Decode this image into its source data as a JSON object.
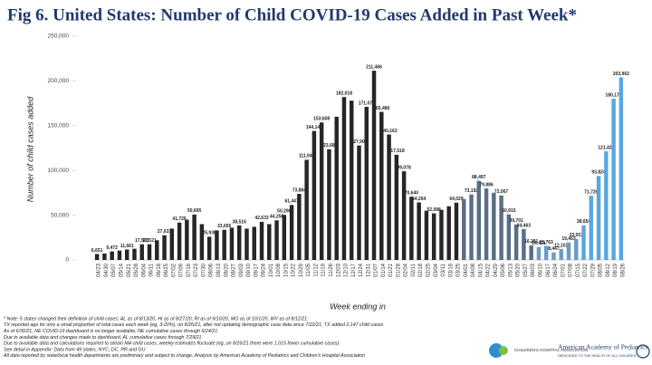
{
  "chart_data": {
    "type": "bar",
    "title": "Fig 6. United States: Number of Child COVID-19 Cases Added in Past Week*",
    "y_label": "Number of child cases added",
    "x_label": "Week ending in",
    "categories": [
      "04/23",
      "04/30",
      "05/07",
      "05/14",
      "05/21",
      "05/28",
      "06/04",
      "06/11",
      "06/18",
      "06/25",
      "07/02",
      "07/09",
      "07/16",
      "07/23",
      "07/30",
      "08/06",
      "08/13",
      "08/20",
      "08/27",
      "09/03",
      "09/10",
      "09/17",
      "09/24",
      "10/01",
      "10/08",
      "10/15",
      "10/22",
      "10/29",
      "11/05",
      "11/12",
      "11/19",
      "11/26",
      "12/03",
      "12/10",
      "12/17",
      "12/24",
      "12/31",
      "01/07",
      "01/14",
      "01/21",
      "01/28",
      "02/04",
      "02/11",
      "02/18",
      "02/25",
      "03/04",
      "03/11",
      "03/18",
      "03/25",
      "04/01",
      "04/08",
      "04/15",
      "04/22",
      "04/29",
      "05/06",
      "05/13",
      "05/20",
      "05/27",
      "06/03",
      "06/10",
      "06/17",
      "06/24",
      "07/01",
      "07/08",
      "07/15",
      "07/22",
      "07/29",
      "08/05",
      "08/12",
      "08/19",
      "08/26"
    ],
    "values": [
      6651,
      7200,
      9472,
      10500,
      11661,
      12500,
      17503,
      17521,
      22000,
      27631,
      35000,
      41726,
      45000,
      50695,
      40000,
      25938,
      33000,
      33655,
      36000,
      38516,
      35000,
      37000,
      42633,
      40000,
      44258,
      50296,
      61447,
      73884,
      111946,
      144145,
      153608,
      123688,
      160000,
      182018,
      178000,
      127906,
      171079,
      211466,
      165480,
      140162,
      117518,
      99078,
      70640,
      64264,
      55000,
      52088,
      56000,
      60000,
      64029,
      68000,
      73192,
      88497,
      79886,
      75000,
      72067,
      50915,
      39701,
      34463,
      16281,
      14421,
      15763,
      8447,
      12102,
      19463,
      23551,
      38654,
      71726,
      93824,
      121427,
      180175,
      203962
    ],
    "value_labels": [
      "6,651",
      null,
      "9,472",
      null,
      "11,661",
      null,
      "17,503",
      "17,521",
      null,
      "27,631",
      null,
      "41,726",
      null,
      "50,695",
      null,
      "25,938",
      null,
      "33,655",
      null,
      "38,516",
      null,
      null,
      "42,633",
      null,
      "44,258",
      "50,296",
      "61,447",
      "73,884",
      "111,946",
      "144,145",
      "153,608",
      "123,688",
      null,
      "182,018",
      null,
      "127,906",
      "171,079",
      "211,466",
      "165,480",
      "140,162",
      "117,518",
      "99,078",
      "70,640",
      "64,264",
      null,
      "52,088",
      null,
      null,
      "64,029",
      null,
      "73,192",
      "88,497",
      "79,886",
      null,
      "72,067",
      "50,915",
      "39,701",
      "34,463",
      "16,281",
      "14,421",
      "15,763",
      "8,447",
      "12,102",
      "19,463",
      "23,551",
      "38,654",
      "71,726",
      "93,824",
      "121,427",
      "180,175",
      "203,962"
    ],
    "colors": [
      "#262626",
      "#262626",
      "#262626",
      "#262626",
      "#262626",
      "#262626",
      "#262626",
      "#262626",
      "#262626",
      "#262626",
      "#262626",
      "#262626",
      "#262626",
      "#262626",
      "#262626",
      "#262626",
      "#262626",
      "#262626",
      "#262626",
      "#262626",
      "#262626",
      "#262626",
      "#262626",
      "#262626",
      "#262626",
      "#262626",
      "#262626",
      "#262626",
      "#262626",
      "#262626",
      "#262626",
      "#262626",
      "#262626",
      "#262626",
      "#262626",
      "#262626",
      "#262626",
      "#262626",
      "#262626",
      "#262626",
      "#262626",
      "#262626",
      "#262626",
      "#262626",
      "#262626",
      "#262626",
      "#262626",
      "#262626",
      "#262626",
      "#5a6f86",
      "#5a6f86",
      "#5a6f86",
      "#5a6f86",
      "#5a6f86",
      "#5a6f86",
      "#5a6f86",
      "#5a6f86",
      "#5a6f86",
      "#5a6f86",
      "#6b9bc9",
      "#6b9bc9",
      "#6b9bc9",
      "#6b9bc9",
      "#6b9bc9",
      "#6b9bc9",
      "#5aa7e0",
      "#5aa7e0",
      "#5aa7e0",
      "#5aa7e0",
      "#5aa7e0",
      "#5aa7e0"
    ],
    "ylim": [
      0,
      250000
    ],
    "yticks": [
      0,
      {
        "value": 50000,
        "label": "50,000"
      },
      {
        "value": 100000,
        "label": "100,000"
      },
      {
        "value": 150000,
        "label": "150,000"
      },
      {
        "value": 200000,
        "label": "200,000"
      },
      {
        "value": 250000,
        "label": "250,000"
      }
    ],
    "grid": false,
    "notes": [
      "* Note: 5 states changed their definition of child cases: AL as of 8/13/20, HI as of 8/27/20, RI as of 9/10/20, MO as of 10/1/20, WV as of 8/12/21;",
      "TX reported age for only a small proportion of total cases each week (eg, 3-20%); on 8/26/21, after not updating demographic case data since 7/22/21, TX added 2,147 child cases",
      "As of 6/30/21, NE COVID-19 dashboard is no longer available; NE cumulative cases through 6/24/21",
      "Due to available data and changes made to dashboard, AL cumulative cases through 7/29/21",
      "Due to available data and calculations required to obtain MA child cases, weekly estimates fluctuate (eg, on 8/26/21 there were 1,015 fewer cumulative cases)",
      "See detail in Appendix: Data from 49 states, NYC, DC, PR and GU",
      "All data reported by state/local health departments are preliminary and subject to change; Analysis by American Academy of Pediatrics and Children's Hospital Association"
    ],
    "logos": {
      "cha": "CHILDREN'S HOSPITAL ASSOCIATION",
      "aap": "American Academy of Pediatrics",
      "aap_tagline": "DEDICATED TO THE HEALTH OF ALL CHILDREN"
    }
  }
}
